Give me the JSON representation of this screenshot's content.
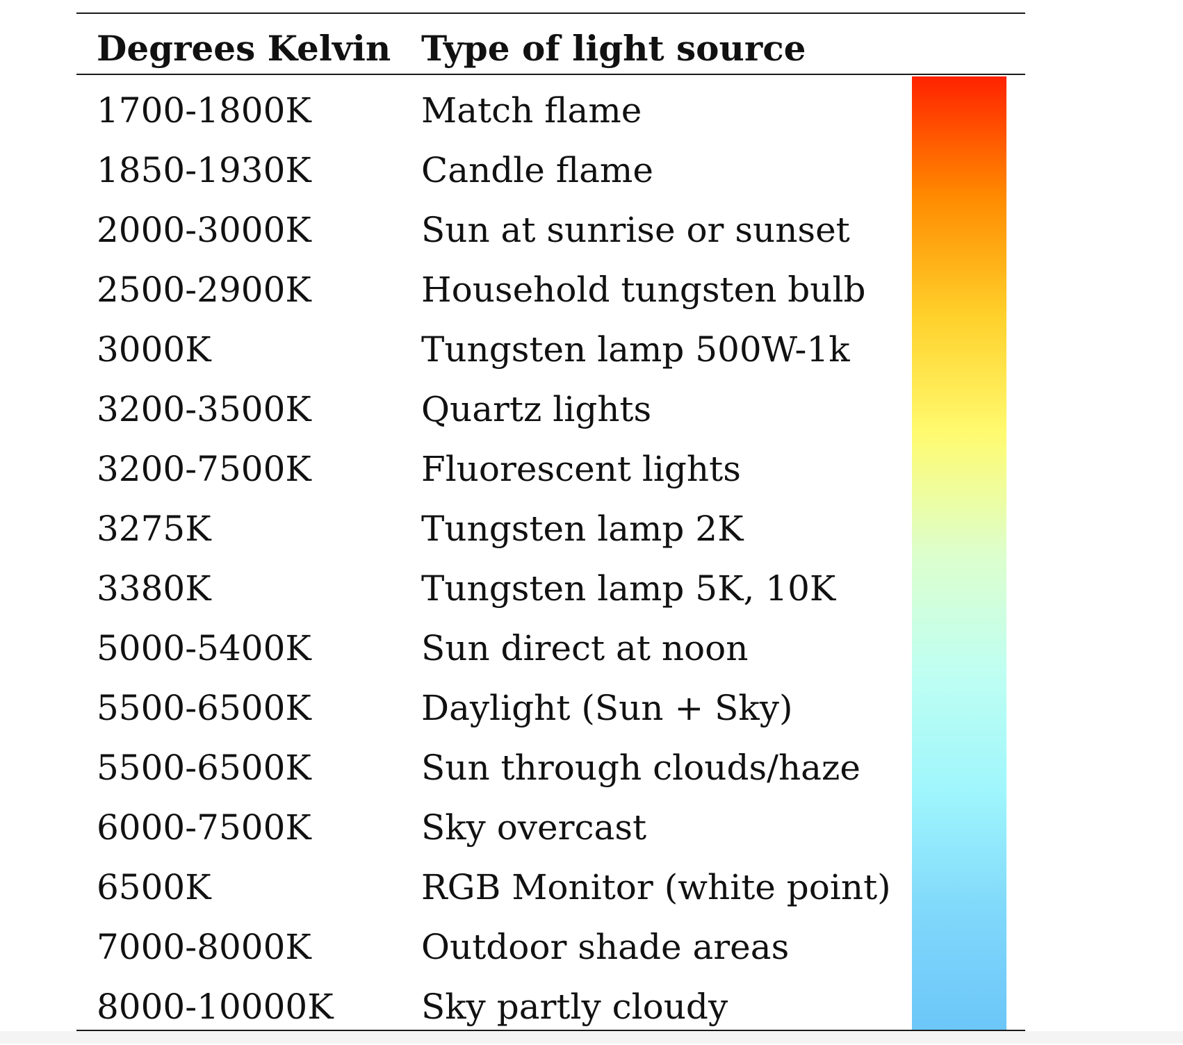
{
  "table": {
    "headers": {
      "kelvin": "Degrees Kelvin",
      "source": "Type of light source"
    },
    "rows": [
      {
        "kelvin": "1700-1800K",
        "source": "Match flame"
      },
      {
        "kelvin": "1850-1930K",
        "source": "Candle flame"
      },
      {
        "kelvin": "2000-3000K",
        "source": "Sun at sunrise or sunset"
      },
      {
        "kelvin": "2500-2900K",
        "source": "Household tungsten bulb"
      },
      {
        "kelvin": "3000K",
        "source": "Tungsten lamp 500W-1k"
      },
      {
        "kelvin": "3200-3500K",
        "source": "Quartz lights"
      },
      {
        "kelvin": "3200-7500K",
        "source": "Fluorescent lights"
      },
      {
        "kelvin": "3275K",
        "source": "Tungsten lamp 2K"
      },
      {
        "kelvin": "3380K",
        "source": "Tungsten lamp 5K, 10K"
      },
      {
        "kelvin": "5000-5400K",
        "source": "Sun direct at noon"
      },
      {
        "kelvin": "5500-6500K",
        "source": "Daylight (Sun + Sky)"
      },
      {
        "kelvin": "5500-6500K",
        "source": "Sun through clouds/haze"
      },
      {
        "kelvin": "6000-7500K",
        "source": "Sky overcast"
      },
      {
        "kelvin": "6500K",
        "source": "RGB Monitor (white point)"
      },
      {
        "kelvin": "7000-8000K",
        "source": "Outdoor shade areas"
      },
      {
        "kelvin": "8000-10000K",
        "source": "Sky partly cloudy"
      }
    ]
  },
  "color_bar": {
    "stops": [
      "#ff2200",
      "#ff8a00",
      "#ffd02a",
      "#fffb70",
      "#ddffcc",
      "#bffff2",
      "#9ff6fc",
      "#80d8fb",
      "#6cc6f8"
    ]
  }
}
